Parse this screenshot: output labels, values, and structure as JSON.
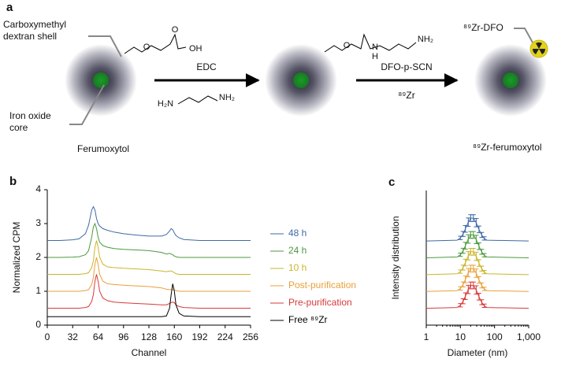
{
  "scheme": {
    "panel": "a",
    "shell_label": [
      "Carboxymethyl",
      "dextran shell"
    ],
    "core_label": [
      "Iron oxide",
      "core"
    ],
    "particle1": "Ferumoxytol",
    "step1": "EDC",
    "step2": "DFO-p-SCN",
    "step2b": "⁸⁹Zr",
    "dfo_label": "⁸⁹Zr-DFO",
    "product": "⁸⁹Zr-ferumoxytol",
    "chem": {
      "o1": "O",
      "oh": "OH",
      "o2": "O",
      "o3": "O",
      "n": "N",
      "h": "H",
      "nh2": "NH₂",
      "h2n": "H₂N",
      "nh2b": "NH₂"
    }
  },
  "chart_data": [
    {
      "type": "line",
      "panel": "b",
      "xlabel": "Channel",
      "ylabel": "Normalized CPM",
      "xlim": [
        0,
        256
      ],
      "xticks": [
        0,
        32,
        64,
        96,
        128,
        160,
        192,
        224,
        256
      ],
      "ylim": [
        0,
        4
      ],
      "yticks": [
        0,
        1,
        2,
        3,
        4
      ],
      "x": [
        0,
        16,
        32,
        40,
        48,
        52,
        56,
        58,
        60,
        62,
        64,
        66,
        70,
        76,
        84,
        96,
        112,
        128,
        144,
        150,
        154,
        156,
        158,
        160,
        162,
        166,
        172,
        192,
        224,
        256
      ],
      "series": [
        {
          "name": "48 h",
          "color": "#3f6aa6",
          "values": [
            2.5,
            2.5,
            2.52,
            2.55,
            2.7,
            2.95,
            3.4,
            3.5,
            3.4,
            3.15,
            3.0,
            2.93,
            2.85,
            2.8,
            2.75,
            2.7,
            2.66,
            2.63,
            2.63,
            2.68,
            2.78,
            2.85,
            2.82,
            2.72,
            2.65,
            2.58,
            2.53,
            2.5,
            2.5,
            2.5
          ]
        },
        {
          "name": "24 h",
          "color": "#4c9a3f",
          "values": [
            2,
            2,
            2.01,
            2.02,
            2.08,
            2.2,
            2.6,
            2.9,
            3.0,
            2.85,
            2.6,
            2.45,
            2.35,
            2.3,
            2.26,
            2.24,
            2.22,
            2.2,
            2.15,
            2.1,
            2.12,
            2.1,
            2.08,
            2.04,
            2.02,
            2,
            2,
            2,
            2,
            2
          ]
        },
        {
          "name": "10 h",
          "color": "#c9b62c",
          "values": [
            1.5,
            1.5,
            1.5,
            1.5,
            1.52,
            1.55,
            1.7,
            1.9,
            2.3,
            2.5,
            2.3,
            2.0,
            1.8,
            1.72,
            1.7,
            1.68,
            1.66,
            1.64,
            1.6,
            1.58,
            1.6,
            1.6,
            1.58,
            1.55,
            1.52,
            1.5,
            1.5,
            1.5,
            1.5,
            1.5
          ]
        },
        {
          "name": "Post-purification",
          "color": "#e9a03a",
          "values": [
            1,
            1,
            1,
            1,
            1.02,
            1.05,
            1.2,
            1.4,
            1.8,
            2.0,
            1.8,
            1.5,
            1.3,
            1.22,
            1.2,
            1.18,
            1.16,
            1.14,
            1.1,
            1.06,
            1.05,
            1.05,
            1.05,
            1.04,
            1.02,
            1,
            1,
            1,
            1,
            1
          ]
        },
        {
          "name": "Pre-purification",
          "color": "#d83a3a",
          "values": [
            0.5,
            0.5,
            0.5,
            0.5,
            0.52,
            0.55,
            0.7,
            0.9,
            1.3,
            1.5,
            1.3,
            1.0,
            0.8,
            0.72,
            0.68,
            0.66,
            0.64,
            0.62,
            0.6,
            0.6,
            0.64,
            0.67,
            0.68,
            0.66,
            0.6,
            0.55,
            0.52,
            0.5,
            0.5,
            0.5
          ]
        },
        {
          "name": "Free ⁸⁹Zr",
          "color": "#000000",
          "values": [
            0.25,
            0.25,
            0.25,
            0.25,
            0.25,
            0.25,
            0.25,
            0.25,
            0.25,
            0.25,
            0.25,
            0.25,
            0.25,
            0.25,
            0.25,
            0.25,
            0.25,
            0.25,
            0.25,
            0.27,
            0.5,
            0.9,
            1.22,
            1.0,
            0.6,
            0.35,
            0.27,
            0.25,
            0.25,
            0.25
          ]
        }
      ]
    },
    {
      "type": "line",
      "panel": "c",
      "xlabel": "Diameter (nm)",
      "ylabel": "Intensity distribution",
      "xscale": "log",
      "xlim": [
        1,
        1000
      ],
      "xticks": [
        1,
        10,
        100,
        {
          "value": 1000,
          "label": "1,000"
        }
      ],
      "ylim": [
        0,
        8
      ],
      "yticks": [],
      "x": [
        1,
        8,
        10,
        12,
        14,
        17,
        20,
        24,
        29,
        35,
        42,
        50,
        60,
        1000
      ],
      "series": [
        {
          "color": "#3f6aa6",
          "values": [
            5,
            5.05,
            5.18,
            5.42,
            5.72,
            6.12,
            6.36,
            6.36,
            6.09,
            5.69,
            5.36,
            5.15,
            5.05,
            5
          ],
          "errors": [
            null,
            null,
            0.1,
            0.15,
            0.2,
            0.25,
            0.2,
            0.2,
            0.25,
            0.2,
            0.15,
            0.1,
            null,
            null
          ]
        },
        {
          "color": "#4c9a3f",
          "values": [
            4,
            4.05,
            4.18,
            4.42,
            4.72,
            5.12,
            5.36,
            5.36,
            5.09,
            4.69,
            4.36,
            4.15,
            4.05,
            4
          ],
          "errors": [
            null,
            null,
            0.1,
            0.15,
            0.2,
            0.25,
            0.2,
            0.2,
            0.25,
            0.2,
            0.15,
            0.1,
            null,
            null
          ]
        },
        {
          "color": "#c9b62c",
          "values": [
            3,
            3.05,
            3.18,
            3.42,
            3.72,
            4.12,
            4.36,
            4.36,
            4.09,
            3.69,
            3.36,
            3.15,
            3.05,
            3
          ],
          "errors": [
            null,
            null,
            0.1,
            0.15,
            0.2,
            0.25,
            0.2,
            0.2,
            0.25,
            0.2,
            0.15,
            0.1,
            null,
            null
          ]
        },
        {
          "color": "#e9a03a",
          "values": [
            2,
            2.05,
            2.18,
            2.42,
            2.72,
            3.12,
            3.36,
            3.36,
            3.09,
            2.69,
            2.36,
            2.15,
            2.05,
            2
          ],
          "errors": [
            null,
            null,
            0.1,
            0.15,
            0.2,
            0.25,
            0.2,
            0.2,
            0.25,
            0.2,
            0.15,
            0.1,
            null,
            null
          ]
        },
        {
          "color": "#d83a3a",
          "values": [
            1,
            1.05,
            1.18,
            1.42,
            1.72,
            2.12,
            2.36,
            2.36,
            2.09,
            1.69,
            1.36,
            1.15,
            1.05,
            1
          ],
          "errors": [
            null,
            null,
            0.1,
            0.15,
            0.2,
            0.25,
            0.2,
            0.2,
            0.25,
            0.2,
            0.15,
            0.1,
            null,
            null
          ]
        }
      ]
    }
  ]
}
